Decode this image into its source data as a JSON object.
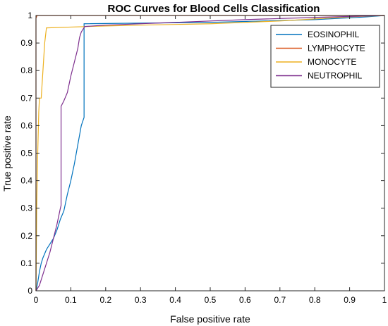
{
  "chart_data": {
    "type": "line",
    "title": "ROC Curves for Blood Cells Classification",
    "xlabel": "False positive rate",
    "ylabel": "True positive rate",
    "xlim": [
      0,
      1
    ],
    "ylim": [
      0,
      1
    ],
    "x_ticks": [
      "0",
      "0.1",
      "0.2",
      "0.3",
      "0.4",
      "0.5",
      "0.6",
      "0.7",
      "0.8",
      "0.9",
      "1"
    ],
    "y_ticks": [
      "0",
      "0.1",
      "0.2",
      "0.3",
      "0.4",
      "0.5",
      "0.6",
      "0.7",
      "0.8",
      "0.9",
      "1"
    ],
    "grid": false,
    "legend_position": "top-right",
    "series": [
      {
        "name": "EOSINOPHIL",
        "color": "#0072BD",
        "points": [
          [
            0,
            0
          ],
          [
            0.005,
            0.03
          ],
          [
            0.01,
            0.07
          ],
          [
            0.015,
            0.1
          ],
          [
            0.02,
            0.12
          ],
          [
            0.03,
            0.15
          ],
          [
            0.04,
            0.17
          ],
          [
            0.05,
            0.19
          ],
          [
            0.06,
            0.22
          ],
          [
            0.07,
            0.26
          ],
          [
            0.08,
            0.29
          ],
          [
            0.09,
            0.35
          ],
          [
            0.1,
            0.4
          ],
          [
            0.11,
            0.46
          ],
          [
            0.12,
            0.53
          ],
          [
            0.13,
            0.6
          ],
          [
            0.138,
            0.63
          ],
          [
            0.138,
            0.97
          ],
          [
            0.5,
            0.975
          ],
          [
            0.8,
            0.985
          ],
          [
            0.95,
            0.995
          ],
          [
            1,
            1
          ]
        ]
      },
      {
        "name": "LYMPHOCYTE",
        "color": "#D95319",
        "points": [
          [
            0,
            0
          ],
          [
            0,
            0.99
          ],
          [
            0.003,
            1
          ],
          [
            1,
            1
          ]
        ]
      },
      {
        "name": "MONOCYTE",
        "color": "#EDB120",
        "points": [
          [
            0,
            0
          ],
          [
            0.002,
            0.3
          ],
          [
            0.005,
            0.5
          ],
          [
            0.008,
            0.65
          ],
          [
            0.01,
            0.7
          ],
          [
            0.015,
            0.7
          ],
          [
            0.02,
            0.8
          ],
          [
            0.025,
            0.9
          ],
          [
            0.03,
            0.955
          ],
          [
            0.1,
            0.958
          ],
          [
            0.2,
            0.962
          ],
          [
            0.3,
            0.965
          ],
          [
            0.5,
            0.97
          ],
          [
            0.7,
            0.98
          ],
          [
            0.9,
            0.995
          ],
          [
            1,
            1
          ]
        ]
      },
      {
        "name": "NEUTROPHIL",
        "color": "#7E2F8E",
        "points": [
          [
            0,
            0
          ],
          [
            0.01,
            0.02
          ],
          [
            0.02,
            0.06
          ],
          [
            0.03,
            0.1
          ],
          [
            0.04,
            0.14
          ],
          [
            0.05,
            0.19
          ],
          [
            0.06,
            0.24
          ],
          [
            0.07,
            0.3
          ],
          [
            0.072,
            0.31
          ],
          [
            0.072,
            0.67
          ],
          [
            0.08,
            0.69
          ],
          [
            0.09,
            0.72
          ],
          [
            0.1,
            0.78
          ],
          [
            0.11,
            0.83
          ],
          [
            0.12,
            0.88
          ],
          [
            0.125,
            0.92
          ],
          [
            0.13,
            0.94
          ],
          [
            0.14,
            0.96
          ],
          [
            0.2,
            0.965
          ],
          [
            0.4,
            0.975
          ],
          [
            0.6,
            0.985
          ],
          [
            0.8,
            0.993
          ],
          [
            1,
            1
          ]
        ]
      }
    ]
  }
}
